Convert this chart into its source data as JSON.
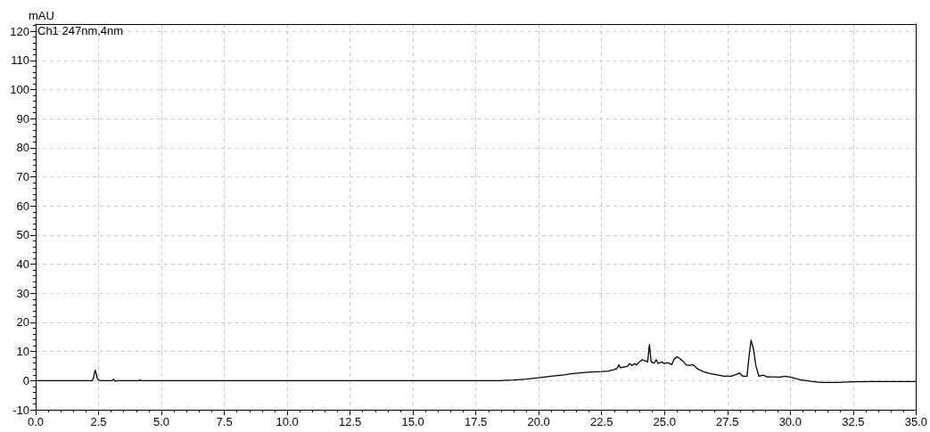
{
  "chart_data": {
    "type": "line",
    "ylabel": "mAU",
    "annotations": [
      "Ch1 247nm,4nm"
    ],
    "x": [
      0,
      2.25,
      2.3,
      2.34,
      2.37,
      2.4,
      2.45,
      2.5,
      2.6,
      3.05,
      3.1,
      3.15,
      3.25,
      4.1,
      4.15,
      4.2,
      10,
      17.5,
      18.4,
      19.0,
      19.5,
      20.0,
      20.5,
      21.0,
      21.23,
      21.93,
      22.5,
      22.76,
      23.0,
      23.11,
      23.18,
      23.25,
      23.41,
      23.53,
      23.61,
      23.7,
      23.8,
      23.88,
      24.0,
      24.12,
      24.2,
      24.27,
      24.33,
      24.4,
      24.47,
      24.59,
      24.67,
      24.74,
      24.88,
      25.0,
      25.12,
      25.29,
      25.38,
      25.5,
      25.61,
      25.73,
      25.86,
      26.0,
      26.08,
      26.18,
      26.3,
      26.53,
      26.77,
      27.0,
      27.36,
      27.65,
      27.85,
      27.98,
      28.12,
      28.28,
      28.36,
      28.44,
      28.54,
      28.63,
      28.75,
      28.92,
      29.07,
      29.36,
      29.6,
      29.78,
      30.0,
      30.4,
      30.89,
      31.24,
      31.83,
      32.54,
      33.24,
      35.0
    ],
    "series": [
      {
        "color": "#000000",
        "values": [
          0,
          0,
          1.0,
          2.8,
          3.6,
          2.5,
          0.8,
          0.2,
          0,
          0,
          0.5,
          -0.2,
          0,
          0,
          0.2,
          0,
          0,
          0,
          0,
          0.2,
          0.5,
          1.0,
          1.5,
          2.0,
          2.3,
          2.9,
          3.1,
          3.3,
          3.8,
          4.1,
          5.4,
          4.4,
          4.7,
          4.9,
          5.9,
          5.2,
          5.8,
          5.4,
          6.4,
          7.2,
          6.9,
          6.7,
          6.4,
          12.4,
          6.4,
          6.0,
          7.2,
          5.9,
          6.4,
          5.9,
          6.2,
          5.5,
          7.4,
          8.2,
          7.6,
          6.7,
          5.4,
          5.2,
          5.5,
          5.2,
          4.1,
          3.1,
          2.5,
          2.1,
          1.5,
          1.5,
          2.1,
          2.6,
          1.5,
          1.5,
          8.2,
          13.9,
          10.8,
          5.2,
          1.5,
          1.9,
          1.3,
          1.3,
          1.2,
          1.5,
          1.2,
          0.3,
          -0.3,
          -0.6,
          -0.6,
          -0.4,
          -0.3,
          -0.3
        ]
      }
    ],
    "xlim": [
      0,
      35
    ],
    "xticks": [
      {
        "value": 0,
        "label": "0.0"
      },
      {
        "value": 0.5,
        "label": null
      },
      {
        "value": 1,
        "label": null
      },
      {
        "value": 1.5,
        "label": null
      },
      {
        "value": 2,
        "label": null
      },
      {
        "value": 2.5,
        "label": "2.5"
      },
      {
        "value": 3,
        "label": null
      },
      {
        "value": 3.5,
        "label": null
      },
      {
        "value": 4,
        "label": null
      },
      {
        "value": 4.5,
        "label": null
      },
      {
        "value": 5,
        "label": "5.0"
      },
      {
        "value": 5.5,
        "label": null
      },
      {
        "value": 6,
        "label": null
      },
      {
        "value": 6.5,
        "label": null
      },
      {
        "value": 7,
        "label": null
      },
      {
        "value": 7.5,
        "label": "7.5"
      },
      {
        "value": 8,
        "label": null
      },
      {
        "value": 8.5,
        "label": null
      },
      {
        "value": 9,
        "label": null
      },
      {
        "value": 9.5,
        "label": null
      },
      {
        "value": 10,
        "label": "10.0"
      },
      {
        "value": 10.5,
        "label": null
      },
      {
        "value": 11,
        "label": null
      },
      {
        "value": 11.5,
        "label": null
      },
      {
        "value": 12,
        "label": null
      },
      {
        "value": 12.5,
        "label": "12.5"
      },
      {
        "value": 13,
        "label": null
      },
      {
        "value": 13.5,
        "label": null
      },
      {
        "value": 14,
        "label": null
      },
      {
        "value": 14.5,
        "label": null
      },
      {
        "value": 15,
        "label": "15.0"
      },
      {
        "value": 15.5,
        "label": null
      },
      {
        "value": 16,
        "label": null
      },
      {
        "value": 16.5,
        "label": null
      },
      {
        "value": 17,
        "label": null
      },
      {
        "value": 17.5,
        "label": "17.5"
      },
      {
        "value": 18,
        "label": null
      },
      {
        "value": 18.5,
        "label": null
      },
      {
        "value": 19,
        "label": null
      },
      {
        "value": 19.5,
        "label": null
      },
      {
        "value": 20,
        "label": "20.0"
      },
      {
        "value": 20.5,
        "label": null
      },
      {
        "value": 21,
        "label": null
      },
      {
        "value": 21.5,
        "label": null
      },
      {
        "value": 22,
        "label": null
      },
      {
        "value": 22.5,
        "label": "22.5"
      },
      {
        "value": 23,
        "label": null
      },
      {
        "value": 23.5,
        "label": null
      },
      {
        "value": 24,
        "label": null
      },
      {
        "value": 24.5,
        "label": null
      },
      {
        "value": 25,
        "label": "25.0"
      },
      {
        "value": 25.5,
        "label": null
      },
      {
        "value": 26,
        "label": null
      },
      {
        "value": 26.5,
        "label": null
      },
      {
        "value": 27,
        "label": null
      },
      {
        "value": 27.5,
        "label": "27.5"
      },
      {
        "value": 28,
        "label": null
      },
      {
        "value": 28.5,
        "label": null
      },
      {
        "value": 29,
        "label": null
      },
      {
        "value": 29.5,
        "label": null
      },
      {
        "value": 30,
        "label": "30.0"
      },
      {
        "value": 30.5,
        "label": null
      },
      {
        "value": 31,
        "label": null
      },
      {
        "value": 31.5,
        "label": null
      },
      {
        "value": 32,
        "label": null
      },
      {
        "value": 32.5,
        "label": "32.5"
      },
      {
        "value": 33,
        "label": null
      },
      {
        "value": 33.5,
        "label": null
      },
      {
        "value": 34,
        "label": null
      },
      {
        "value": 34.5,
        "label": null
      },
      {
        "value": 35,
        "label": "35.0"
      }
    ],
    "ylim": [
      -10,
      122.5
    ],
    "yticks": [
      -10,
      {
        "value": -8,
        "label": null
      },
      {
        "value": -6,
        "label": null
      },
      {
        "value": -4,
        "label": null
      },
      {
        "value": -2,
        "label": null
      },
      0,
      {
        "value": 2,
        "label": null
      },
      {
        "value": 4,
        "label": null
      },
      {
        "value": 6,
        "label": null
      },
      {
        "value": 8,
        "label": null
      },
      10,
      {
        "value": 12,
        "label": null
      },
      {
        "value": 14,
        "label": null
      },
      {
        "value": 16,
        "label": null
      },
      {
        "value": 18,
        "label": null
      },
      20,
      {
        "value": 22,
        "label": null
      },
      {
        "value": 24,
        "label": null
      },
      {
        "value": 26,
        "label": null
      },
      {
        "value": 28,
        "label": null
      },
      30,
      {
        "value": 32,
        "label": null
      },
      {
        "value": 34,
        "label": null
      },
      {
        "value": 36,
        "label": null
      },
      {
        "value": 38,
        "label": null
      },
      40,
      {
        "value": 42,
        "label": null
      },
      {
        "value": 44,
        "label": null
      },
      {
        "value": 46,
        "label": null
      },
      {
        "value": 48,
        "label": null
      },
      50,
      {
        "value": 52,
        "label": null
      },
      {
        "value": 54,
        "label": null
      },
      {
        "value": 56,
        "label": null
      },
      {
        "value": 58,
        "label": null
      },
      60,
      {
        "value": 62,
        "label": null
      },
      {
        "value": 64,
        "label": null
      },
      {
        "value": 66,
        "label": null
      },
      {
        "value": 68,
        "label": null
      },
      70,
      {
        "value": 72,
        "label": null
      },
      {
        "value": 74,
        "label": null
      },
      {
        "value": 76,
        "label": null
      },
      {
        "value": 78,
        "label": null
      },
      80,
      {
        "value": 82,
        "label": null
      },
      {
        "value": 84,
        "label": null
      },
      {
        "value": 86,
        "label": null
      },
      {
        "value": 88,
        "label": null
      },
      90,
      {
        "value": 92,
        "label": null
      },
      {
        "value": 94,
        "label": null
      },
      {
        "value": 96,
        "label": null
      },
      {
        "value": 98,
        "label": null
      },
      100,
      {
        "value": 102,
        "label": null
      },
      {
        "value": 104,
        "label": null
      },
      {
        "value": 106,
        "label": null
      },
      {
        "value": 108,
        "label": null
      },
      110,
      {
        "value": 112,
        "label": null
      },
      {
        "value": 114,
        "label": null
      },
      {
        "value": 116,
        "label": null
      },
      {
        "value": 118,
        "label": null
      },
      120,
      {
        "value": 122,
        "label": null
      }
    ],
    "grid": true,
    "marker": "none",
    "line_style": "solid"
  }
}
